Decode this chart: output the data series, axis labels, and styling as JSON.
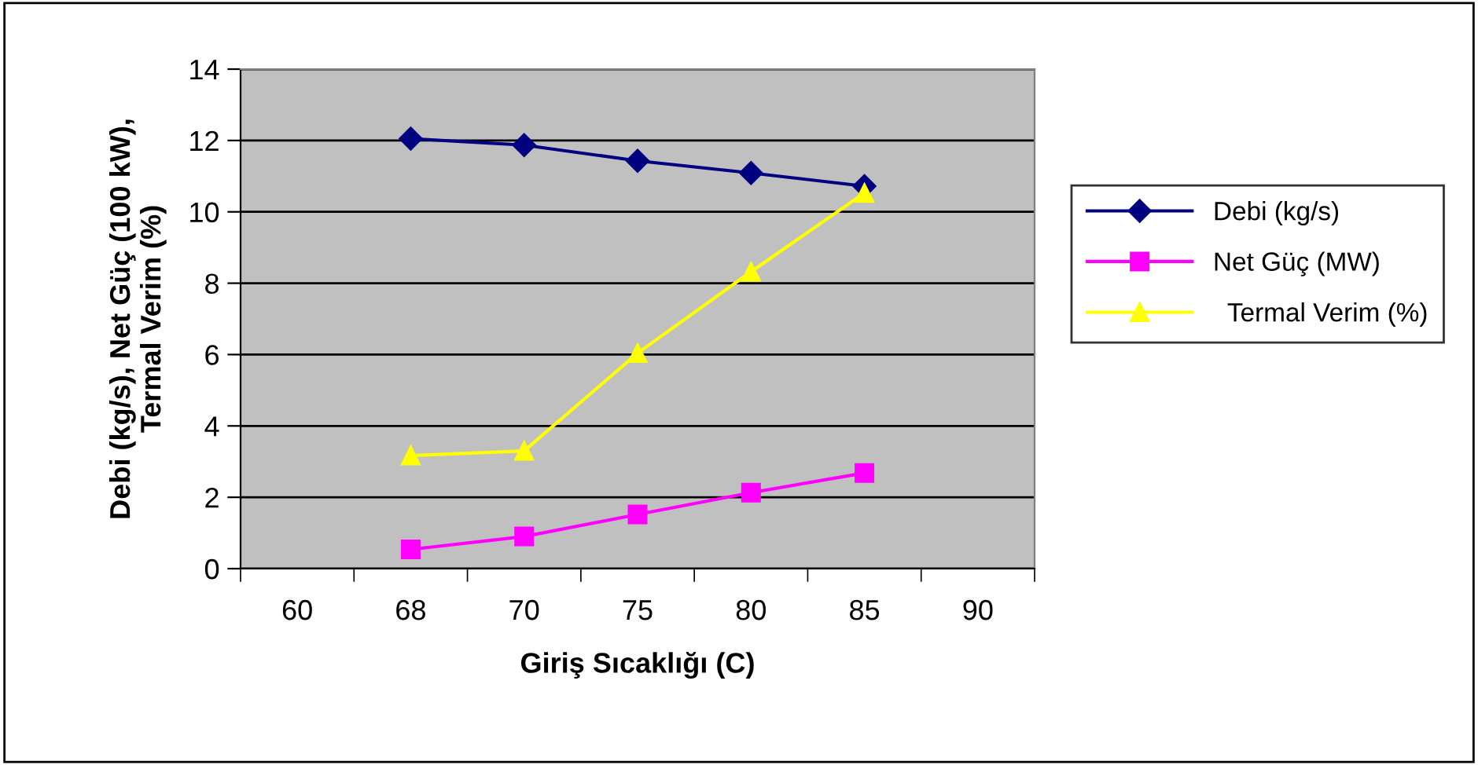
{
  "chart_data": {
    "type": "line",
    "xlabel": "Giriş Sıcaklığı (C)",
    "ylabel": "Debi (kg/s), Net Güç (100 kW),\nTermal Verim (%)",
    "categories": [
      "60",
      "68",
      "70",
      "75",
      "80",
      "85",
      "90"
    ],
    "series": [
      {
        "name": "Debi (kg/s)",
        "color": "#000080",
        "marker": "diamond",
        "values": [
          null,
          12.05,
          11.87,
          11.43,
          11.09,
          10.72,
          null
        ]
      },
      {
        "name": "Net Güç (MW)",
        "color": "#ff00ff",
        "marker": "square",
        "values": [
          null,
          0.54,
          0.9,
          1.52,
          2.13,
          2.68,
          null
        ]
      },
      {
        "name": "  Termal Verim (%)",
        "color": "#ffff00",
        "marker": "triangle",
        "values": [
          null,
          3.17,
          3.3,
          6.04,
          8.32,
          10.53,
          null
        ]
      }
    ],
    "ylim": [
      0,
      14
    ],
    "yticks": [
      0,
      2,
      4,
      6,
      8,
      10,
      12,
      14
    ],
    "grid": "y",
    "legend": "right"
  }
}
